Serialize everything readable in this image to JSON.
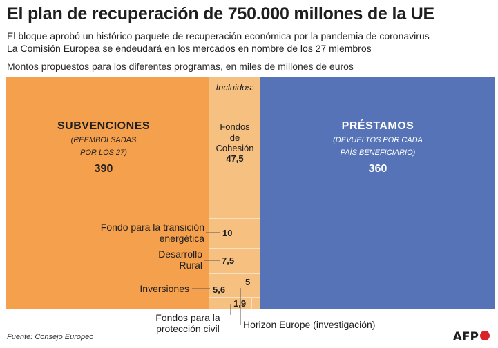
{
  "header": {
    "title": "El plan de recuperación de 750.000 millones de la UE",
    "subtitle_1": "El bloque aprobó un histórico paquete de recuperación económica por la pandemia de coronavirus",
    "subtitle_2": "La Comisión Europea se endeudará en los mercados en nombre de los 27 miembros",
    "measure": "Montos propuestos para los diferentes programas, en miles de millones de euros"
  },
  "chart_data": {
    "type": "treemap",
    "title": "El plan de recuperación de 750.000 millones de la UE",
    "unit": "miles de millones de euros",
    "total": 750,
    "blocks": [
      {
        "name": "Subvenciones",
        "label": "SUBVENCIONES",
        "note_line1": "(REEMBOLSADAS",
        "note_line2": "POR LOS 27)",
        "value": 390,
        "value_label": "390",
        "color": "#f4a04c",
        "included_label": "Incluidos:",
        "included": [
          {
            "name": "Fondos de Cohesión",
            "line1": "Fondos",
            "line2": "de",
            "line3": "Cohesión",
            "value": 47.5,
            "value_label": "47,5"
          },
          {
            "name": "Fondo para la transición energética",
            "line1": "Fondo para la transición",
            "line2": "energética",
            "value": 10,
            "value_label": "10"
          },
          {
            "name": "Desarrollo Rural",
            "line1": "Desarrollo",
            "line2": "Rural",
            "value": 7.5,
            "value_label": "7,5"
          },
          {
            "name": "Inversiones",
            "line1": "Inversiones",
            "value": 5.6,
            "value_label": "5,6"
          },
          {
            "name": "Horizon Europe (investigación)",
            "line1": "Horizon Europe (investigación)",
            "value": 5,
            "value_label": "5"
          },
          {
            "name": "Fondos para la protección civil",
            "line1": "Fondos para la",
            "line2": "protección civil",
            "value": 1.9,
            "value_label": "1,9"
          }
        ]
      },
      {
        "name": "Préstamos",
        "label": "PRÉSTAMOS",
        "note_line1": "(DEVUELTOS POR CADA",
        "note_line2": "PAÍS BENEFICIARIO)",
        "value": 360,
        "value_label": "360",
        "color": "#5573b6"
      }
    ],
    "included_color": "#f6c080"
  },
  "footer": {
    "source": "Fuente: Consejo Europeo",
    "logo": "AFP"
  }
}
